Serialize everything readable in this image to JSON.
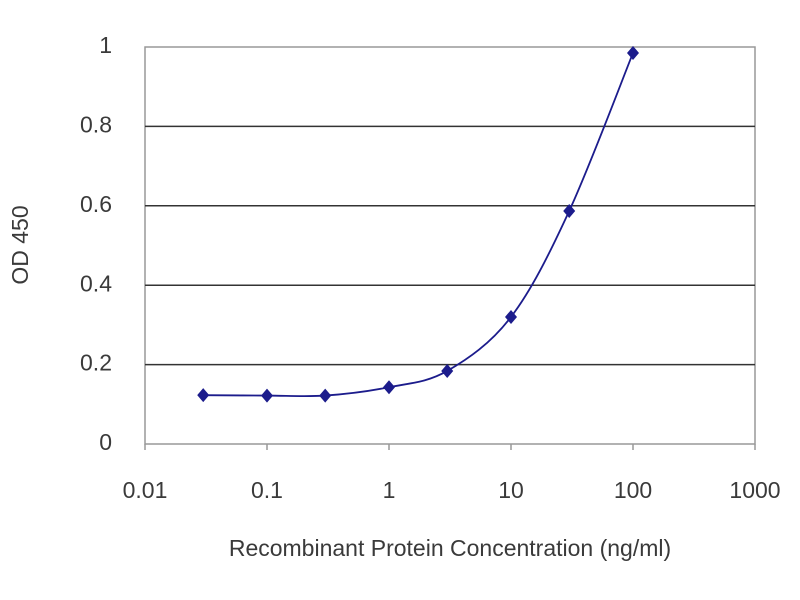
{
  "chart_data": {
    "type": "line",
    "xlabel": "Recombinant Protein Concentration (ng/ml)",
    "ylabel": "OD 450",
    "x": [
      0.03,
      0.1,
      0.3,
      1,
      3,
      10,
      30,
      100
    ],
    "series": [
      {
        "color": "#1c1c8c",
        "values": [
          0.123,
          0.122,
          0.122,
          0.143,
          0.184,
          0.32,
          0.587,
          0.985
        ]
      }
    ],
    "xscale": "log",
    "xlim": [
      0.01,
      1000
    ],
    "xticks": [
      0.01,
      0.1,
      1,
      10,
      100,
      1000
    ],
    "ylim": [
      0,
      1
    ],
    "yticks": [
      0,
      0.2,
      0.4,
      0.6,
      0.8,
      1
    ],
    "grid": true
  }
}
